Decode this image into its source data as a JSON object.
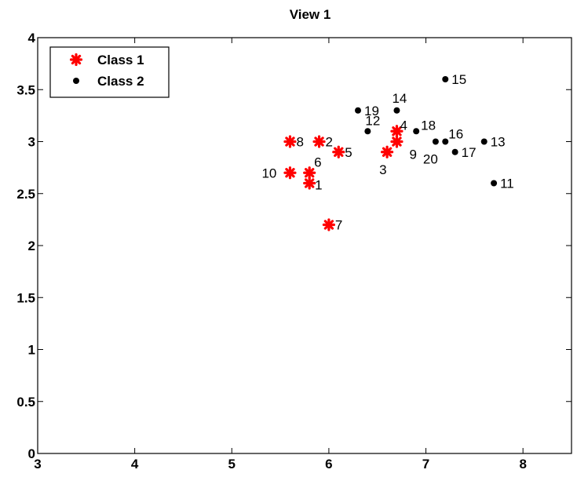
{
  "chart_data": {
    "type": "scatter",
    "title": "View 1",
    "xlabel": "",
    "ylabel": "",
    "xlim": [
      3,
      8.5
    ],
    "ylim": [
      0,
      4
    ],
    "xticks": [
      3,
      4,
      5,
      6,
      7,
      8
    ],
    "yticks": [
      0,
      0.5,
      1,
      1.5,
      2,
      2.5,
      3,
      3.5,
      4
    ],
    "xtick_labels": [
      "3",
      "4",
      "5",
      "6",
      "7",
      "8"
    ],
    "ytick_labels": [
      "0",
      "0.5",
      "1",
      "1.5",
      "2",
      "2.5",
      "3",
      "3.5",
      "4"
    ],
    "grid": false,
    "legend_position": "top-left",
    "series": [
      {
        "name": "Class 1",
        "marker": "asterisk",
        "color": "#ff0000",
        "points": [
          {
            "x": 5.8,
            "y": 2.6,
            "label": "1"
          },
          {
            "x": 5.9,
            "y": 3.0,
            "label": "2"
          },
          {
            "x": 6.6,
            "y": 2.9,
            "label": "3"
          },
          {
            "x": 6.7,
            "y": 3.1,
            "label": "4"
          },
          {
            "x": 6.1,
            "y": 2.9,
            "label": "5"
          },
          {
            "x": 5.8,
            "y": 2.7,
            "label": "6"
          },
          {
            "x": 6.0,
            "y": 2.2,
            "label": "7"
          },
          {
            "x": 5.6,
            "y": 3.0,
            "label": "8"
          },
          {
            "x": 6.7,
            "y": 3.0,
            "label": "9"
          },
          {
            "x": 5.6,
            "y": 2.7,
            "label": "10"
          }
        ]
      },
      {
        "name": "Class 2",
        "marker": "dot",
        "color": "#000000",
        "points": [
          {
            "x": 7.7,
            "y": 2.6,
            "label": "11"
          },
          {
            "x": 6.4,
            "y": 3.1,
            "label": "12"
          },
          {
            "x": 7.6,
            "y": 3.0,
            "label": "13"
          },
          {
            "x": 6.7,
            "y": 3.3,
            "label": "14"
          },
          {
            "x": 7.2,
            "y": 3.6,
            "label": "15"
          },
          {
            "x": 7.2,
            "y": 3.0,
            "label": "16"
          },
          {
            "x": 7.3,
            "y": 2.9,
            "label": "17"
          },
          {
            "x": 6.9,
            "y": 3.1,
            "label": "18"
          },
          {
            "x": 6.3,
            "y": 3.3,
            "label": "19"
          },
          {
            "x": 7.1,
            "y": 3.0,
            "label": "20"
          }
        ]
      }
    ]
  }
}
